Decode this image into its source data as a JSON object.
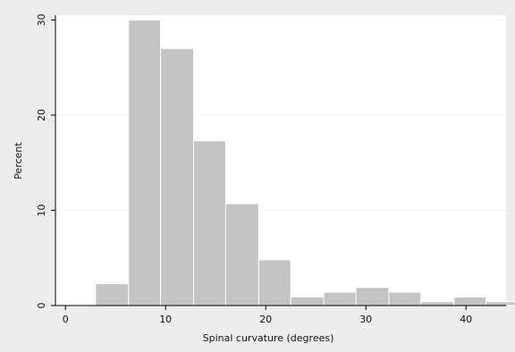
{
  "chart_data": {
    "type": "bar",
    "title": "",
    "xlabel": "Spinal curvature (degrees)",
    "ylabel": "Percent",
    "xlim": [
      -1,
      44
    ],
    "ylim": [
      0,
      30.5
    ],
    "x_ticks": [
      0,
      10,
      20,
      30,
      40
    ],
    "y_ticks": [
      0,
      10,
      20,
      30
    ],
    "grid": true,
    "bar_color": "#c4c4c4",
    "plot_background": "#ffffff",
    "outer_background": "#ededed",
    "bins": [
      {
        "x0": 3.0,
        "x1": 6.3,
        "value": 2.3
      },
      {
        "x0": 6.3,
        "x1": 9.5,
        "value": 30.0
      },
      {
        "x0": 9.5,
        "x1": 12.8,
        "value": 27.0
      },
      {
        "x0": 12.8,
        "x1": 16.0,
        "value": 17.3
      },
      {
        "x0": 16.0,
        "x1": 19.3,
        "value": 10.7
      },
      {
        "x0": 19.3,
        "x1": 22.5,
        "value": 4.8
      },
      {
        "x0": 22.5,
        "x1": 25.8,
        "value": 0.9
      },
      {
        "x0": 25.8,
        "x1": 29.0,
        "value": 1.4
      },
      {
        "x0": 29.0,
        "x1": 32.3,
        "value": 1.9
      },
      {
        "x0": 32.3,
        "x1": 35.5,
        "value": 1.4
      },
      {
        "x0": 35.5,
        "x1": 38.8,
        "value": 0.4
      },
      {
        "x0": 38.8,
        "x1": 42.0,
        "value": 0.9
      },
      {
        "x0": 42.0,
        "x1": 45.3,
        "value": 0.4
      }
    ]
  }
}
